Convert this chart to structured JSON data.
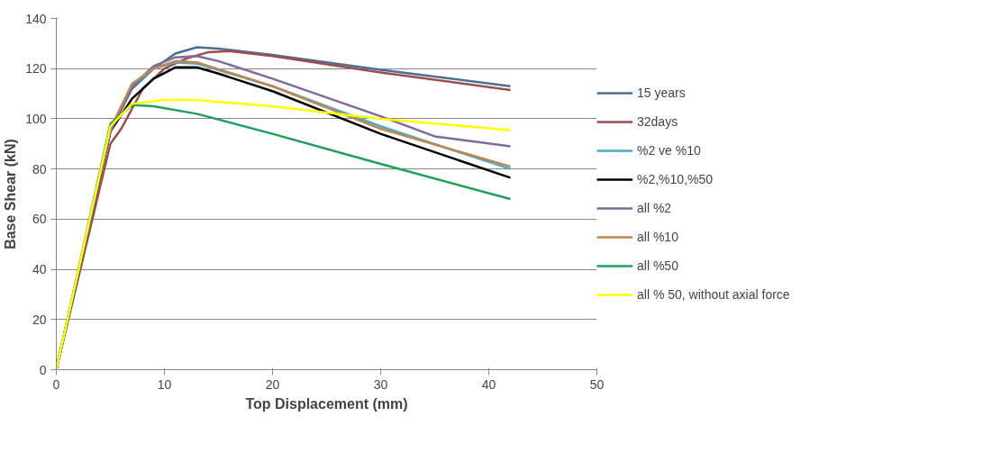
{
  "chart_data": {
    "type": "line",
    "xlabel": "Top Displacement (mm)",
    "ylabel": "Base Shear (kN)",
    "xlim": [
      0,
      50
    ],
    "xticks": [
      0,
      10,
      20,
      30,
      40,
      50
    ],
    "ylim": [
      0,
      140
    ],
    "yticks": [
      0,
      20,
      40,
      60,
      80,
      100,
      120,
      140
    ],
    "grid": "y",
    "legend": "right",
    "marker": "none",
    "line_style": "solid",
    "series": [
      {
        "name": "15 years",
        "color": "#4a6f94",
        "x": [
          0,
          5,
          7,
          9,
          11,
          13,
          15,
          20,
          30,
          42
        ],
        "values": [
          0,
          95,
          112,
          120,
          126,
          128.5,
          128,
          125.5,
          119.5,
          113
        ]
      },
      {
        "name": "32days",
        "color": "#a04c4c",
        "x": [
          0,
          5,
          6,
          8,
          10,
          12,
          14,
          16,
          20,
          30,
          42
        ],
        "values": [
          0,
          90,
          96,
          112,
          120,
          124,
          126.5,
          127,
          125,
          118.5,
          111.5
        ]
      },
      {
        "name": "%2 ve %10",
        "color": "#4bacc6",
        "x": [
          0,
          5,
          7,
          9,
          11,
          13,
          20,
          30,
          42
        ],
        "values": [
          0,
          95,
          113,
          120,
          122.5,
          122,
          113,
          97,
          80
        ]
      },
      {
        "name": "%2,%10,%50",
        "color": "#000000",
        "x": [
          0,
          5,
          7,
          9,
          11,
          13,
          15,
          20,
          30,
          42
        ],
        "values": [
          0,
          95,
          108,
          116,
          120.5,
          120.5,
          118,
          111,
          94,
          76.5
        ]
      },
      {
        "name": "all %2",
        "color": "#7f6aa0",
        "x": [
          0,
          5,
          7,
          9,
          11,
          13,
          15,
          20,
          30,
          35,
          42
        ],
        "values": [
          0,
          95,
          113,
          121,
          124.5,
          125,
          123,
          116,
          101,
          93,
          89
        ]
      },
      {
        "name": "all %10",
        "color": "#c0874f",
        "x": [
          0,
          5,
          7,
          9,
          11,
          13,
          20,
          30,
          42
        ],
        "values": [
          0,
          96,
          114,
          120,
          123,
          122.5,
          113,
          96,
          81
        ]
      },
      {
        "name": "all %50",
        "color": "#1ea05a",
        "x": [
          0,
          5,
          7,
          9,
          13,
          20,
          30,
          42
        ],
        "values": [
          0,
          98,
          105.5,
          105,
          102,
          94,
          82,
          68
        ]
      },
      {
        "name": "all % 50, without axial force",
        "color": "#ffff00",
        "x": [
          0,
          5,
          7,
          10,
          13,
          20,
          30,
          42
        ],
        "values": [
          0,
          97,
          106,
          107.5,
          107.5,
          105,
          100,
          95.5
        ]
      }
    ]
  }
}
